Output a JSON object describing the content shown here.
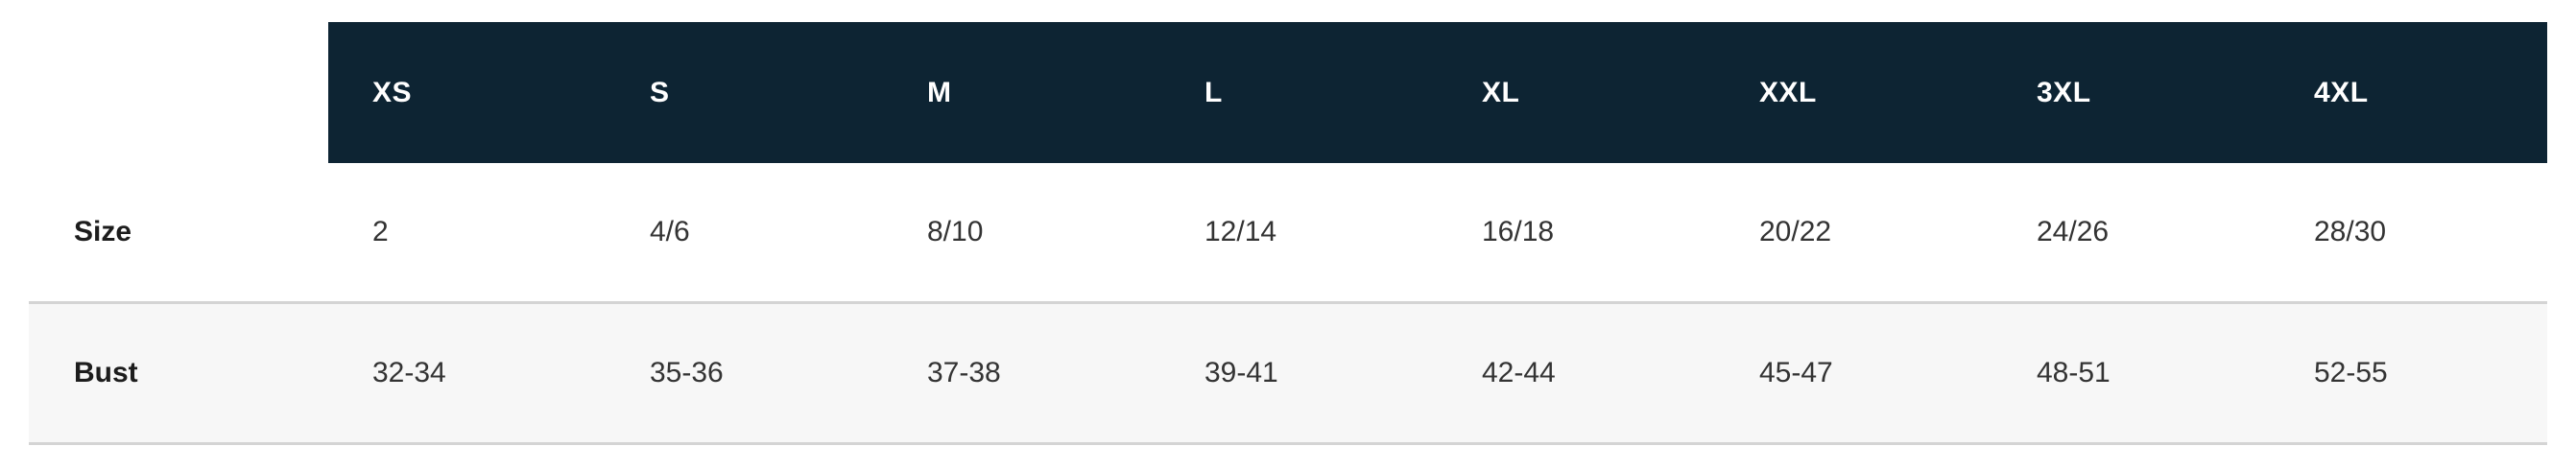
{
  "size_chart": {
    "header": {
      "corner": "",
      "columns": [
        "XS",
        "S",
        "M",
        "L",
        "XL",
        "XXL",
        "3XL",
        "4XL"
      ]
    },
    "rows": [
      {
        "label": "Size",
        "values": [
          "2",
          "4/6",
          "8/10",
          "12/14",
          "16/18",
          "20/22",
          "24/26",
          "28/30"
        ]
      },
      {
        "label": "Bust",
        "values": [
          "32-34",
          "35-36",
          "37-38",
          "39-41",
          "42-44",
          "45-47",
          "48-51",
          "52-55"
        ]
      }
    ],
    "colors": {
      "header_bg": "#0d2433",
      "header_text": "#ffffff",
      "alt_row_bg": "#f7f7f7",
      "divider": "#d4d4d4",
      "value_text": "#333333",
      "label_text": "#1d1d1d"
    }
  }
}
